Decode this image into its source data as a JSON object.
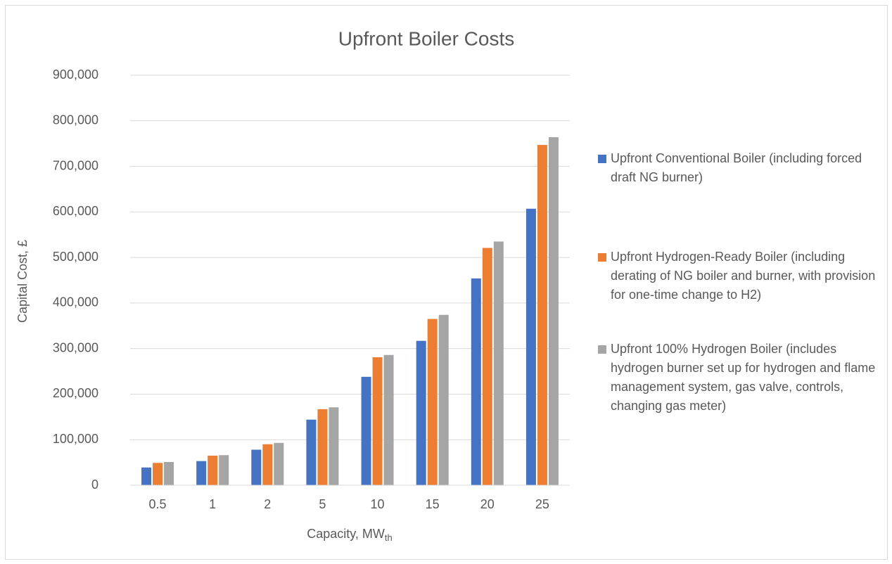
{
  "chart_data": {
    "type": "bar",
    "title": "Upfront Boiler Costs",
    "x_label": "Capacity, MW",
    "x_label_subscript": "th",
    "y_label": "Capital Cost, £",
    "categories": [
      "0.5",
      "1",
      "2",
      "5",
      "10",
      "15",
      "20",
      "25"
    ],
    "series": [
      {
        "name": "Upfront Conventional Boiler (including forced draft NG burner)",
        "color": "#4472c4",
        "values": [
          39000,
          53000,
          78000,
          144000,
          238000,
          317000,
          454000,
          607000
        ]
      },
      {
        "name": "Upfront Hydrogen-Ready Boiler (including derating of NG boiler and burner, with provision for one-time change to H2)",
        "color": "#ed7d31",
        "values": [
          49000,
          65000,
          90000,
          167000,
          281000,
          365000,
          521000,
          747000
        ]
      },
      {
        "name": "Upfront 100% Hydrogen Boiler (includes hydrogen burner set up for hydrogen and flame management system, gas valve, controls, changing gas meter)",
        "color": "#a5a5a5",
        "values": [
          51000,
          66000,
          93000,
          171000,
          286000,
          374000,
          535000,
          764000
        ]
      }
    ],
    "ylim": [
      0,
      900000
    ],
    "yticks": [
      0,
      {
        "value": 100000,
        "label": "100,000"
      },
      {
        "value": 200000,
        "label": "200,000"
      },
      {
        "value": 300000,
        "label": "300,000"
      },
      {
        "value": 400000,
        "label": "400,000"
      },
      {
        "value": 500000,
        "label": "500,000"
      },
      {
        "value": 600000,
        "label": "600,000"
      },
      {
        "value": 700000,
        "label": "700,000"
      },
      {
        "value": 800000,
        "label": "800,000"
      },
      {
        "value": 900000,
        "label": "900,000"
      }
    ],
    "grid": true,
    "legend": "right"
  }
}
